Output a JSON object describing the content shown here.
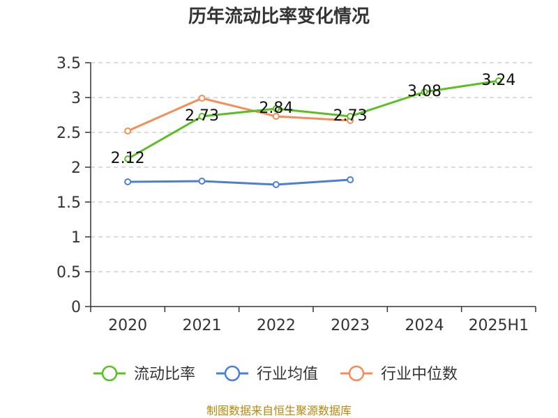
{
  "chart_data": {
    "type": "line",
    "title": "历年流动比率变化情况",
    "categories": [
      "2020",
      "2021",
      "2022",
      "2023",
      "2024",
      "2025H1"
    ],
    "ylim": [
      0,
      3.5
    ],
    "yticks": [
      "0",
      "0.5",
      "1",
      "1.5",
      "2",
      "2.5",
      "3",
      "3.5"
    ],
    "grid": true,
    "legend_position": "bottom",
    "series": [
      {
        "name": "流动比率",
        "color": "#5bbf24",
        "values": [
          2.12,
          2.73,
          2.84,
          2.73,
          3.08,
          3.24
        ],
        "labels": [
          "2.12",
          "2.73",
          "2.84",
          "2.73",
          "3.08",
          "3.24"
        ]
      },
      {
        "name": "行业均值",
        "color": "#4a7fd6",
        "values": [
          1.79,
          1.8,
          1.75,
          1.82,
          null,
          null
        ]
      },
      {
        "name": "行业中位数",
        "color": "#f58d5a",
        "values": [
          2.52,
          2.99,
          2.73,
          2.67,
          null,
          null
        ]
      }
    ]
  },
  "source": "制图数据来自恒生聚源数据库"
}
